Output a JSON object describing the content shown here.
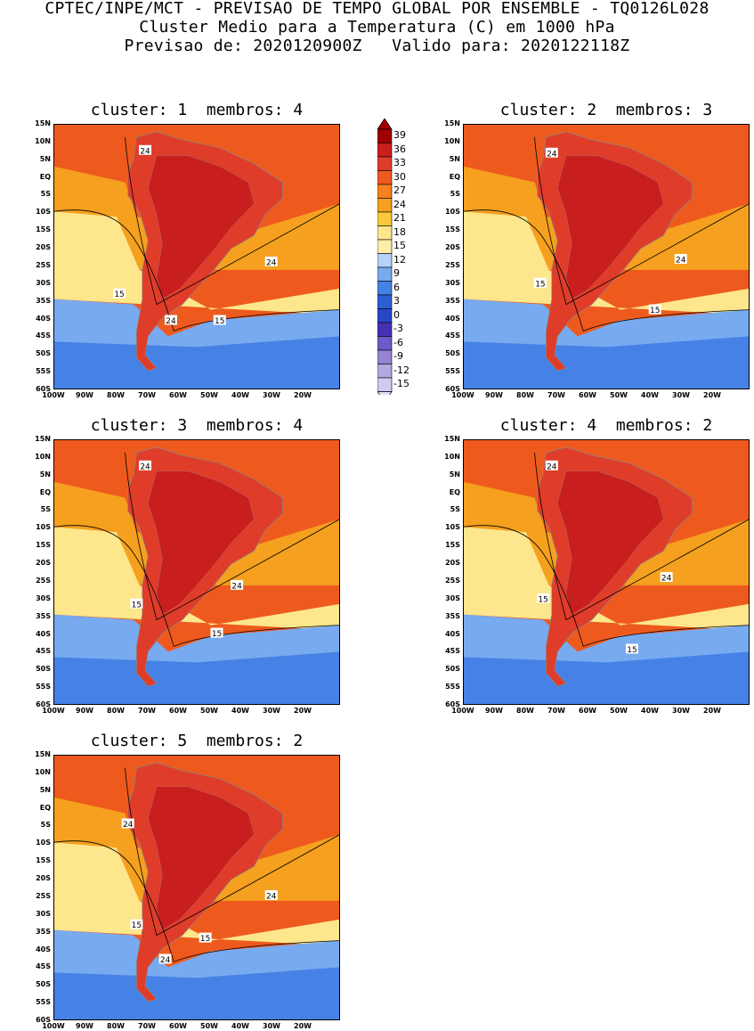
{
  "header": {
    "line1": "CPTEC/INPE/MCT - PREVISAO DE TEMPO GLOBAL POR ENSEMBLE - TQ0126L028",
    "line2": "Cluster Medio para a Temperatura (C) em 1000 hPa",
    "line3": "Previsao de: 2020120900Z   Valido para: 2020122118Z"
  },
  "panels": [
    {
      "title": "cluster: 1  membros: 4",
      "labels": [
        "24",
        "24",
        "24",
        "15",
        "15"
      ]
    },
    {
      "title": "cluster: 2  membros: 3",
      "labels": [
        "24",
        "24",
        "15",
        "15"
      ]
    },
    {
      "title": "cluster: 3  membros: 4",
      "labels": [
        "24",
        "24",
        "15",
        "15"
      ]
    },
    {
      "title": "cluster: 4  membros: 2",
      "labels": [
        "24",
        "24",
        "15",
        "15"
      ]
    },
    {
      "title": "cluster: 5  membros: 2",
      "labels": [
        "24",
        "24",
        "24",
        "15",
        "15"
      ]
    }
  ],
  "y_axis_labels": [
    "15N",
    "10N",
    "5N",
    "EQ",
    "5S",
    "10S",
    "15S",
    "20S",
    "25S",
    "30S",
    "35S",
    "40S",
    "45S",
    "50S",
    "55S",
    "60S"
  ],
  "x_axis_labels": [
    "100W",
    "90W",
    "80W",
    "70W",
    "60W",
    "50W",
    "40W",
    "30W",
    "20W"
  ],
  "legend": {
    "values": [
      "39",
      "36",
      "33",
      "30",
      "27",
      "24",
      "21",
      "18",
      "15",
      "12",
      "9",
      "6",
      "3",
      "0",
      "-3",
      "-6",
      "-9",
      "-12",
      "-15"
    ],
    "colors": [
      "#a00000",
      "#c81e1e",
      "#e03c2a",
      "#ee5a1e",
      "#f5821e",
      "#f5a01e",
      "#fac83c",
      "#fde68c",
      "#fdeea8",
      "#b4d2fa",
      "#78aaf0",
      "#4682e6",
      "#2d5fd2",
      "#2846c8",
      "#4630b4",
      "#6e5ac8",
      "#9684d2",
      "#b4a8e0",
      "#d2c8f0"
    ]
  },
  "colors": {
    "land_hot": "#c81e1e",
    "ocean_warm": "#ee5a1e",
    "ocean_mid": "#f5a01e",
    "ocean_cool": "#fde68c",
    "ocean_cold": "#4682e6"
  }
}
